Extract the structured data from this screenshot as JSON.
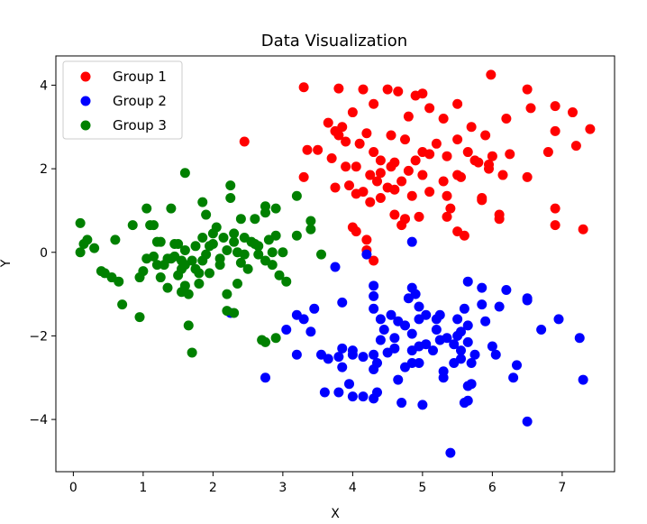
{
  "chart_data": {
    "type": "scatter",
    "title": "Data Visualization",
    "xlabel": "X",
    "ylabel": "Y",
    "xlim": [
      -0.25,
      7.75
    ],
    "ylim": [
      -5.25,
      4.7
    ],
    "xticks": [
      0,
      1,
      2,
      3,
      4,
      5,
      6,
      7
    ],
    "yticks": [
      -4,
      -2,
      0,
      2,
      4
    ],
    "grid": false,
    "legend": "top-left",
    "series": [
      {
        "name": "Group 1",
        "color": "#ff0000",
        "points": [
          [
            3.3,
            3.95
          ],
          [
            3.8,
            3.92
          ],
          [
            4.15,
            3.9
          ],
          [
            4.5,
            3.9
          ],
          [
            4.65,
            3.85
          ],
          [
            4.9,
            3.75
          ],
          [
            5.0,
            3.8
          ],
          [
            5.98,
            4.25
          ],
          [
            6.5,
            3.9
          ],
          [
            6.9,
            3.5
          ],
          [
            7.15,
            3.35
          ],
          [
            7.4,
            2.95
          ],
          [
            6.2,
            3.2
          ],
          [
            6.55,
            3.45
          ],
          [
            5.5,
            3.55
          ],
          [
            5.3,
            3.2
          ],
          [
            5.7,
            3.0
          ],
          [
            5.9,
            2.8
          ],
          [
            5.1,
            3.45
          ],
          [
            4.8,
            3.25
          ],
          [
            4.3,
            3.55
          ],
          [
            4.0,
            3.35
          ],
          [
            3.65,
            3.1
          ],
          [
            3.85,
            3.0
          ],
          [
            3.75,
            2.9
          ],
          [
            4.2,
            2.85
          ],
          [
            4.55,
            2.8
          ],
          [
            4.75,
            2.7
          ],
          [
            4.1,
            2.6
          ],
          [
            3.9,
            2.65
          ],
          [
            3.8,
            2.8
          ],
          [
            3.5,
            2.45
          ],
          [
            3.35,
            2.45
          ],
          [
            2.45,
            2.65
          ],
          [
            4.3,
            2.4
          ],
          [
            4.4,
            2.2
          ],
          [
            4.6,
            2.15
          ],
          [
            4.9,
            2.2
          ],
          [
            5.0,
            2.4
          ],
          [
            5.2,
            2.6
          ],
          [
            5.5,
            2.7
          ],
          [
            5.65,
            2.4
          ],
          [
            5.75,
            2.2
          ],
          [
            6.0,
            2.3
          ],
          [
            6.25,
            2.35
          ],
          [
            6.8,
            2.4
          ],
          [
            6.9,
            2.9
          ],
          [
            7.2,
            2.55
          ],
          [
            5.95,
            2.1
          ],
          [
            5.8,
            2.15
          ],
          [
            5.35,
            2.3
          ],
          [
            5.1,
            2.35
          ],
          [
            4.55,
            2.05
          ],
          [
            4.4,
            1.9
          ],
          [
            4.25,
            1.85
          ],
          [
            4.05,
            2.05
          ],
          [
            3.9,
            2.05
          ],
          [
            3.7,
            2.25
          ],
          [
            3.3,
            1.8
          ],
          [
            3.75,
            1.55
          ],
          [
            3.95,
            1.6
          ],
          [
            4.35,
            1.7
          ],
          [
            4.5,
            1.55
          ],
          [
            4.7,
            1.7
          ],
          [
            4.8,
            1.95
          ],
          [
            5.0,
            1.85
          ],
          [
            5.3,
            1.7
          ],
          [
            5.5,
            1.85
          ],
          [
            5.55,
            1.8
          ],
          [
            5.95,
            2.0
          ],
          [
            6.15,
            1.85
          ],
          [
            6.5,
            1.8
          ],
          [
            5.1,
            1.45
          ],
          [
            4.85,
            1.35
          ],
          [
            4.6,
            1.5
          ],
          [
            4.4,
            1.3
          ],
          [
            4.25,
            1.2
          ],
          [
            4.15,
            1.45
          ],
          [
            4.05,
            1.4
          ],
          [
            5.35,
            1.35
          ],
          [
            5.4,
            1.05
          ],
          [
            5.85,
            1.3
          ],
          [
            5.85,
            1.25
          ],
          [
            6.1,
            0.9
          ],
          [
            6.1,
            0.8
          ],
          [
            6.9,
            1.05
          ],
          [
            6.9,
            0.65
          ],
          [
            7.3,
            0.55
          ],
          [
            5.35,
            0.85
          ],
          [
            4.95,
            0.85
          ],
          [
            4.6,
            0.9
          ],
          [
            4.7,
            0.65
          ],
          [
            4.75,
            0.8
          ],
          [
            4.0,
            0.6
          ],
          [
            4.05,
            0.5
          ],
          [
            4.2,
            0.3
          ],
          [
            4.2,
            0.05
          ],
          [
            4.3,
            -0.2
          ],
          [
            5.5,
            0.5
          ],
          [
            5.6,
            0.4
          ]
        ]
      },
      {
        "name": "Group 2",
        "color": "#0000ff",
        "points": [
          [
            4.85,
            0.25
          ],
          [
            4.2,
            -0.05
          ],
          [
            3.75,
            -0.35
          ],
          [
            4.3,
            -0.8
          ],
          [
            4.85,
            -0.85
          ],
          [
            4.9,
            -1.0
          ],
          [
            4.8,
            -1.1
          ],
          [
            3.85,
            -1.2
          ],
          [
            4.3,
            -1.05
          ],
          [
            4.95,
            -1.3
          ],
          [
            5.65,
            -0.7
          ],
          [
            5.85,
            -0.85
          ],
          [
            6.2,
            -0.9
          ],
          [
            6.5,
            -1.15
          ],
          [
            6.7,
            -1.85
          ],
          [
            6.95,
            -1.6
          ],
          [
            7.25,
            -2.05
          ],
          [
            7.3,
            -3.05
          ],
          [
            6.5,
            -4.05
          ],
          [
            6.35,
            -2.7
          ],
          [
            6.05,
            -2.45
          ],
          [
            6.0,
            -2.25
          ],
          [
            5.75,
            -2.45
          ],
          [
            5.65,
            -1.75
          ],
          [
            5.9,
            -1.65
          ],
          [
            6.1,
            -1.3
          ],
          [
            5.85,
            -1.25
          ],
          [
            5.6,
            -1.35
          ],
          [
            5.5,
            -1.6
          ],
          [
            5.55,
            -1.9
          ],
          [
            5.5,
            -2.0
          ],
          [
            5.65,
            -2.15
          ],
          [
            5.35,
            -2.05
          ],
          [
            5.2,
            -1.85
          ],
          [
            5.2,
            -1.6
          ],
          [
            5.25,
            -1.5
          ],
          [
            5.05,
            -1.5
          ],
          [
            4.95,
            -1.6
          ],
          [
            4.85,
            -1.95
          ],
          [
            4.75,
            -1.75
          ],
          [
            4.65,
            -1.65
          ],
          [
            4.55,
            -1.5
          ],
          [
            4.4,
            -1.6
          ],
          [
            4.45,
            -1.85
          ],
          [
            4.6,
            -2.05
          ],
          [
            4.85,
            -2.35
          ],
          [
            4.95,
            -2.25
          ],
          [
            5.05,
            -2.2
          ],
          [
            5.15,
            -2.35
          ],
          [
            5.25,
            -2.1
          ],
          [
            5.45,
            -2.2
          ],
          [
            5.55,
            -2.35
          ],
          [
            5.55,
            -2.55
          ],
          [
            5.7,
            -2.65
          ],
          [
            5.45,
            -2.65
          ],
          [
            5.3,
            -2.85
          ],
          [
            5.3,
            -3.0
          ],
          [
            5.7,
            -3.15
          ],
          [
            5.65,
            -3.2
          ],
          [
            5.65,
            -3.55
          ],
          [
            5.6,
            -3.6
          ],
          [
            5.0,
            -3.65
          ],
          [
            4.7,
            -3.6
          ],
          [
            4.65,
            -3.05
          ],
          [
            4.75,
            -2.75
          ],
          [
            4.95,
            -2.65
          ],
          [
            4.85,
            -2.65
          ],
          [
            4.6,
            -2.3
          ],
          [
            4.5,
            -2.4
          ],
          [
            4.4,
            -2.1
          ],
          [
            4.3,
            -2.45
          ],
          [
            4.35,
            -2.65
          ],
          [
            4.3,
            -2.8
          ],
          [
            4.35,
            -3.35
          ],
          [
            4.3,
            -3.5
          ],
          [
            4.15,
            -3.45
          ],
          [
            4.0,
            -3.45
          ],
          [
            3.95,
            -3.15
          ],
          [
            3.8,
            -3.35
          ],
          [
            3.6,
            -3.35
          ],
          [
            4.0,
            -2.35
          ],
          [
            4.0,
            -2.45
          ],
          [
            3.85,
            -2.3
          ],
          [
            3.8,
            -2.5
          ],
          [
            3.65,
            -2.55
          ],
          [
            3.55,
            -2.45
          ],
          [
            3.85,
            -2.75
          ],
          [
            3.2,
            -2.45
          ],
          [
            3.4,
            -1.9
          ],
          [
            3.3,
            -1.6
          ],
          [
            3.2,
            -1.5
          ],
          [
            3.45,
            -1.35
          ],
          [
            3.05,
            -1.85
          ],
          [
            2.75,
            -3.0
          ],
          [
            2.25,
            -1.45
          ],
          [
            6.5,
            -1.1
          ],
          [
            5.4,
            -4.8
          ],
          [
            4.15,
            -2.5
          ],
          [
            4.3,
            -1.35
          ],
          [
            6.3,
            -3.0
          ]
        ]
      },
      {
        "name": "Group 3",
        "color": "#008000",
        "points": [
          [
            0.1,
            0.7
          ],
          [
            0.2,
            0.3
          ],
          [
            0.15,
            0.2
          ],
          [
            0.1,
            0.0
          ],
          [
            0.3,
            0.1
          ],
          [
            0.4,
            -0.45
          ],
          [
            0.45,
            -0.5
          ],
          [
            0.6,
            0.3
          ],
          [
            0.65,
            -0.7
          ],
          [
            0.7,
            -1.25
          ],
          [
            0.85,
            0.65
          ],
          [
            0.95,
            -1.55
          ],
          [
            0.95,
            -0.6
          ],
          [
            1.0,
            -0.45
          ],
          [
            1.05,
            1.05
          ],
          [
            1.1,
            0.65
          ],
          [
            1.15,
            0.65
          ],
          [
            1.15,
            -0.1
          ],
          [
            1.2,
            0.25
          ],
          [
            1.2,
            -0.3
          ],
          [
            1.25,
            -0.6
          ],
          [
            1.3,
            -0.3
          ],
          [
            1.35,
            -0.15
          ],
          [
            1.35,
            -0.85
          ],
          [
            1.4,
            1.05
          ],
          [
            1.45,
            0.2
          ],
          [
            1.45,
            -0.1
          ],
          [
            1.5,
            0.2
          ],
          [
            1.5,
            -0.55
          ],
          [
            1.55,
            -0.4
          ],
          [
            1.55,
            -0.95
          ],
          [
            1.6,
            1.9
          ],
          [
            1.6,
            0.05
          ],
          [
            1.6,
            -0.3
          ],
          [
            1.6,
            -0.8
          ],
          [
            1.65,
            -1.0
          ],
          [
            1.65,
            -1.75
          ],
          [
            1.7,
            -2.4
          ],
          [
            1.7,
            -0.2
          ],
          [
            1.75,
            -0.4
          ],
          [
            1.75,
            0.15
          ],
          [
            1.8,
            -0.5
          ],
          [
            1.8,
            -0.75
          ],
          [
            1.85,
            1.2
          ],
          [
            1.85,
            0.35
          ],
          [
            1.9,
            0.9
          ],
          [
            1.9,
            -0.05
          ],
          [
            1.95,
            0.15
          ],
          [
            2.0,
            0.45
          ],
          [
            2.0,
            0.2
          ],
          [
            2.05,
            0.6
          ],
          [
            2.1,
            -0.15
          ],
          [
            2.15,
            0.35
          ],
          [
            2.2,
            -1.0
          ],
          [
            2.2,
            -1.4
          ],
          [
            2.25,
            1.3
          ],
          [
            2.25,
            1.6
          ],
          [
            2.3,
            0.45
          ],
          [
            2.3,
            0.25
          ],
          [
            2.35,
            0.0
          ],
          [
            2.4,
            0.8
          ],
          [
            2.4,
            -0.25
          ],
          [
            2.45,
            0.35
          ],
          [
            2.5,
            -0.4
          ],
          [
            2.55,
            0.25
          ],
          [
            2.6,
            0.2
          ],
          [
            2.6,
            0.8
          ],
          [
            2.65,
            0.15
          ],
          [
            2.65,
            -0.05
          ],
          [
            2.7,
            -2.1
          ],
          [
            2.75,
            1.1
          ],
          [
            2.75,
            0.95
          ],
          [
            2.75,
            -0.2
          ],
          [
            2.8,
            0.3
          ],
          [
            2.85,
            0.0
          ],
          [
            2.85,
            -0.3
          ],
          [
            2.9,
            1.05
          ],
          [
            2.9,
            0.4
          ],
          [
            2.9,
            -2.05
          ],
          [
            2.95,
            -0.55
          ],
          [
            3.0,
            0.0
          ],
          [
            3.05,
            -0.7
          ],
          [
            3.2,
            0.4
          ],
          [
            3.2,
            1.35
          ],
          [
            3.4,
            0.55
          ],
          [
            3.4,
            0.75
          ],
          [
            3.55,
            -0.05
          ],
          [
            2.3,
            -1.45
          ],
          [
            2.35,
            -0.75
          ],
          [
            2.75,
            -2.15
          ],
          [
            1.25,
            0.25
          ],
          [
            1.55,
            -0.2
          ],
          [
            1.95,
            -0.5
          ],
          [
            2.1,
            -0.3
          ],
          [
            0.55,
            -0.6
          ],
          [
            1.05,
            -0.15
          ],
          [
            1.85,
            -0.2
          ],
          [
            2.2,
            0.05
          ],
          [
            1.4,
            -0.15
          ],
          [
            2.45,
            -0.05
          ]
        ]
      }
    ]
  }
}
